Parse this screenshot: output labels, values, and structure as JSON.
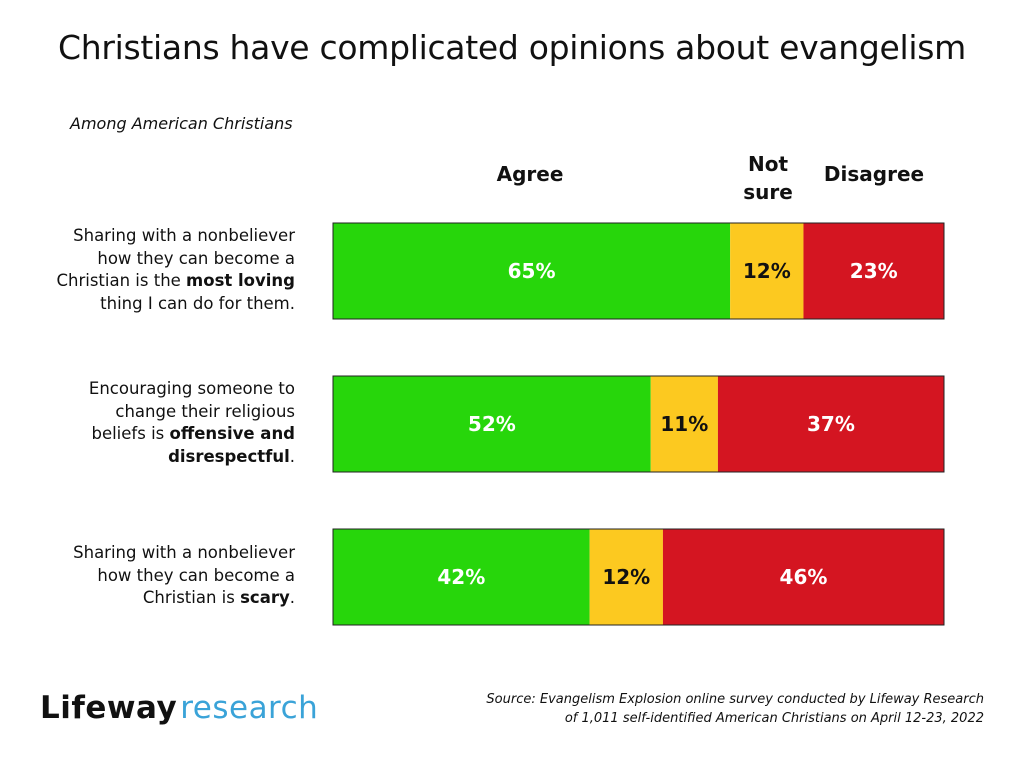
{
  "title": "Christians have complicated opinions about evangelism",
  "subtitle": "Among American Christians",
  "columns": {
    "agree": "Agree",
    "not_sure_line1": "Not",
    "not_sure_line2": "sure",
    "disagree": "Disagree"
  },
  "statements": [
    {
      "line1": "Sharing with a nonbeliever",
      "line2": "how they can become a",
      "line3_pre": "Christian is the ",
      "line3_bold": "most loving",
      "line4": "thing I can do for them."
    },
    {
      "line1": "Encouraging someone to",
      "line2": "change their religious",
      "line3_pre": "beliefs is ",
      "line3_bold": "offensive and",
      "line4_bold": "disrespectful",
      "line4_post": "."
    },
    {
      "line1": "Sharing with a nonbeliever",
      "line2": "how they can become a",
      "line3_pre": "Christian is ",
      "line3_bold": "scary",
      "line3_post": "."
    }
  ],
  "chart_data": {
    "type": "bar",
    "orientation": "horizontal",
    "stacked": true,
    "normalized": true,
    "title": "Christians have complicated opinions about evangelism",
    "subtitle": "Among American Christians",
    "categories": [
      "Sharing with a nonbeliever how they can become a Christian is the most loving thing I can do for them.",
      "Encouraging someone to change their religious beliefs is offensive and disrespectful.",
      "Sharing with a nonbeliever how they can become a Christian is scary."
    ],
    "series": [
      {
        "name": "Agree",
        "color": "#27d60b",
        "label_color": "#ffffff",
        "values": [
          65,
          52,
          42
        ]
      },
      {
        "name": "Not sure",
        "color": "#fcc920",
        "label_color": "#111111",
        "values": [
          12,
          11,
          12
        ]
      },
      {
        "name": "Disagree",
        "color": "#d41521",
        "label_color": "#ffffff",
        "values": [
          23,
          37,
          46
        ]
      }
    ],
    "value_suffix": "%",
    "xlim": [
      0,
      100
    ],
    "grid": false,
    "legend": "top"
  },
  "footer": {
    "logo_brand": "Lifeway",
    "logo_research": "research",
    "source_line1": "Source: Evangelism Explosion online survey conducted by Lifeway Research",
    "source_line2": "of 1,011 self-identified American Christians on April 12-23, 2022"
  }
}
